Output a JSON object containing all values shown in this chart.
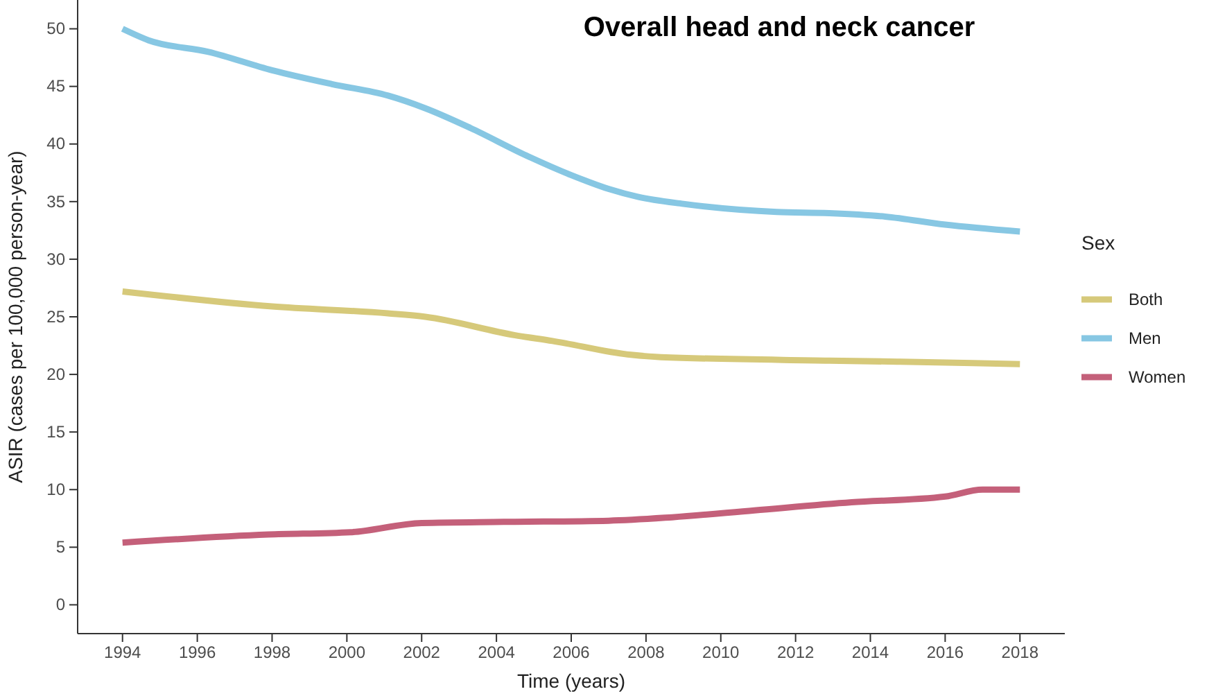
{
  "chart_data": {
    "type": "line",
    "title": "Overall head and neck cancer",
    "xlabel": "Time (years)",
    "ylabel": "ASIR (cases per 100,000 person-year)",
    "legend_title": "Sex",
    "legend": "right",
    "grid": false,
    "line_style": "solid",
    "marker": "none",
    "xlim": [
      1992.8,
      2019.2
    ],
    "xticks": [
      1994,
      1996,
      1998,
      2000,
      2002,
      2004,
      2006,
      2008,
      2010,
      2012,
      2014,
      2016,
      2018
    ],
    "ylim": [
      -2.5,
      52.5
    ],
    "yticks": [
      0,
      5,
      10,
      15,
      20,
      25,
      30,
      35,
      40,
      45,
      50
    ],
    "series": [
      {
        "name": "Both",
        "color": "#d6c97a",
        "x": [
          1994,
          1998,
          2001.1,
          2002.1,
          2004.5,
          2005.5,
          2007.6,
          2008.4,
          2012.9,
          2014.8,
          2018
        ],
        "values": [
          27.2,
          25.9,
          25.3,
          25.0,
          23.4,
          22.9,
          21.7,
          21.5,
          21.2,
          21.1,
          20.9
        ]
      },
      {
        "name": "Men",
        "color": "#87c7e3",
        "x": [
          1994,
          1994.7,
          1996.3,
          1998,
          1999.6,
          2001.1,
          2002.1,
          2003.3,
          2004.8,
          2006,
          2007,
          2007.8,
          2009,
          2011.5,
          2012.9,
          2014.4,
          2016,
          2018
        ],
        "values": [
          50.0,
          49.0,
          48.0,
          46.4,
          45.2,
          44.2,
          43.1,
          41.4,
          39.0,
          37.3,
          36.1,
          35.4,
          34.8,
          34.1,
          34.0,
          33.7,
          33.0,
          32.4
        ]
      },
      {
        "name": "Women",
        "color": "#c4607a",
        "x": [
          1994,
          1997.9,
          2000.1,
          2002,
          2004.2,
          2007,
          2008.7,
          2010.9,
          2013.5,
          2016,
          2017,
          2018
        ],
        "values": [
          5.4,
          6.1,
          6.3,
          7.1,
          7.2,
          7.3,
          7.6,
          8.2,
          8.9,
          9.4,
          10.0,
          10.0
        ]
      }
    ]
  }
}
